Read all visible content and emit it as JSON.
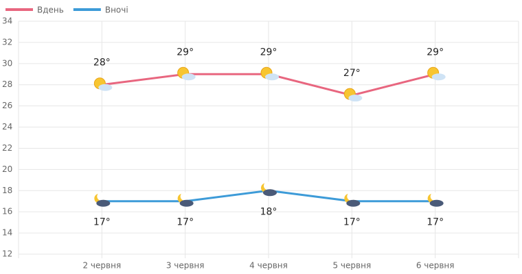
{
  "chart_data": {
    "type": "line",
    "categories": [
      "2 червня",
      "3 червня",
      "4 червня",
      "5 червня",
      "6 червня"
    ],
    "series": [
      {
        "name": "Вдень",
        "color": "#e8667f",
        "values": [
          28,
          29,
          29,
          27,
          29
        ],
        "value_labels": [
          "28°",
          "29°",
          "29°",
          "27°",
          "29°"
        ]
      },
      {
        "name": "Вночі",
        "color": "#3d9bd8",
        "values": [
          17,
          17,
          18,
          17,
          17
        ],
        "value_labels": [
          "17°",
          "17°",
          "18°",
          "17°",
          "17°"
        ]
      }
    ],
    "ylim": [
      12,
      34
    ],
    "yticks": [
      12,
      14,
      16,
      18,
      20,
      22,
      24,
      26,
      28,
      30,
      32,
      34
    ],
    "grid": true
  }
}
